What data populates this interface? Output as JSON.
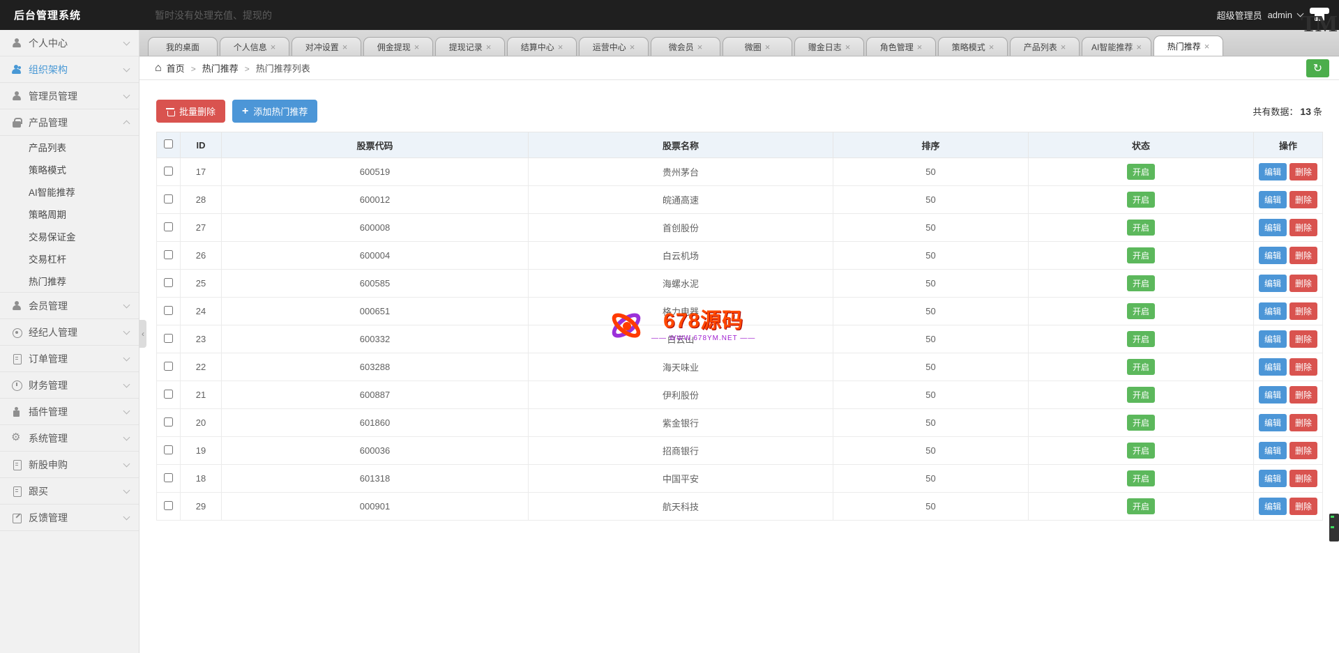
{
  "topbar": {
    "title": "后台管理系统",
    "notice": "暂时没有处理充值、提现的",
    "role": "超级管理员",
    "username": "admin",
    "tm": "TM"
  },
  "colors": {
    "danger": "#d9534f",
    "primary": "#4c96d7",
    "success": "#5cb85c",
    "active_menu": "#4898d5"
  },
  "sidebar": {
    "items": [
      {
        "label": "个人中心",
        "icon": "user-icon",
        "active": false
      },
      {
        "label": "组织架构",
        "icon": "users-icon",
        "active": true
      },
      {
        "label": "管理员管理",
        "icon": "user-icon",
        "active": false
      },
      {
        "label": "产品管理",
        "icon": "bag-icon",
        "active": false,
        "expanded": true,
        "children": [
          "产品列表",
          "策略模式",
          "AI智能推荐",
          "策略周期",
          "交易保证金",
          "交易杠杆",
          "热门推荐"
        ]
      },
      {
        "label": "会员管理",
        "icon": "user-icon",
        "active": false
      },
      {
        "label": "经纪人管理",
        "icon": "coin-icon",
        "active": false
      },
      {
        "label": "订单管理",
        "icon": "doc-icon",
        "active": false
      },
      {
        "label": "财务管理",
        "icon": "clock-icon",
        "active": false
      },
      {
        "label": "插件管理",
        "icon": "plugin-icon",
        "active": false
      },
      {
        "label": "系统管理",
        "icon": "gear-icon",
        "active": false
      },
      {
        "label": "新股申购",
        "icon": "doc-icon",
        "active": false
      },
      {
        "label": "跟买",
        "icon": "doc-icon",
        "active": false
      },
      {
        "label": "反馈管理",
        "icon": "feedback-icon",
        "active": false
      }
    ]
  },
  "tabs": {
    "items": [
      {
        "label": "我的桌面",
        "closable": false,
        "active": false
      },
      {
        "label": "个人信息",
        "closable": true,
        "active": false
      },
      {
        "label": "对冲设置",
        "closable": true,
        "active": false
      },
      {
        "label": "佣金提现",
        "closable": true,
        "active": false
      },
      {
        "label": "提现记录",
        "closable": true,
        "active": false
      },
      {
        "label": "结算中心",
        "closable": true,
        "active": false
      },
      {
        "label": "运营中心",
        "closable": true,
        "active": false
      },
      {
        "label": "微会员",
        "closable": true,
        "active": false
      },
      {
        "label": "微圈",
        "closable": true,
        "active": false
      },
      {
        "label": "赠金日志",
        "closable": true,
        "active": false
      },
      {
        "label": "角色管理",
        "closable": true,
        "active": false
      },
      {
        "label": "策略模式",
        "closable": true,
        "active": false
      },
      {
        "label": "产品列表",
        "closable": true,
        "active": false
      },
      {
        "label": "AI智能推荐",
        "closable": true,
        "active": false
      },
      {
        "label": "热门推荐",
        "closable": true,
        "active": true
      }
    ]
  },
  "breadcrumb": {
    "items": [
      "首页",
      "热门推荐",
      "热门推荐列表"
    ]
  },
  "toolbar": {
    "batch_delete": "批量删除",
    "add_hot": "添加热门推荐",
    "count_prefix": "共有数据：",
    "count": "13",
    "count_suffix": "条"
  },
  "table": {
    "headers": [
      "ID",
      "股票代码",
      "股票名称",
      "排序",
      "状态",
      "操作"
    ],
    "action_edit": "编辑",
    "action_delete": "删除",
    "rows": [
      {
        "id": "17",
        "code": "600519",
        "name": "贵州茅台",
        "sort": "50",
        "status": "开启"
      },
      {
        "id": "28",
        "code": "600012",
        "name": "皖通高速",
        "sort": "50",
        "status": "开启"
      },
      {
        "id": "27",
        "code": "600008",
        "name": "首创股份",
        "sort": "50",
        "status": "开启"
      },
      {
        "id": "26",
        "code": "600004",
        "name": "白云机场",
        "sort": "50",
        "status": "开启"
      },
      {
        "id": "25",
        "code": "600585",
        "name": "海螺水泥",
        "sort": "50",
        "status": "开启"
      },
      {
        "id": "24",
        "code": "000651",
        "name": "格力电器",
        "sort": "50",
        "status": "开启"
      },
      {
        "id": "23",
        "code": "600332",
        "name": "白云山",
        "sort": "50",
        "status": "开启"
      },
      {
        "id": "22",
        "code": "603288",
        "name": "海天味业",
        "sort": "50",
        "status": "开启"
      },
      {
        "id": "21",
        "code": "600887",
        "name": "伊利股份",
        "sort": "50",
        "status": "开启"
      },
      {
        "id": "20",
        "code": "601860",
        "name": "紫金银行",
        "sort": "50",
        "status": "开启"
      },
      {
        "id": "19",
        "code": "600036",
        "name": "招商银行",
        "sort": "50",
        "status": "开启"
      },
      {
        "id": "18",
        "code": "601318",
        "name": "中国平安",
        "sort": "50",
        "status": "开启"
      },
      {
        "id": "29",
        "code": "000901",
        "name": "航天科技",
        "sort": "50",
        "status": "开启"
      }
    ]
  },
  "watermark": {
    "title": "678源码",
    "subtitle": "—— WWW.678YM.NET ——"
  }
}
